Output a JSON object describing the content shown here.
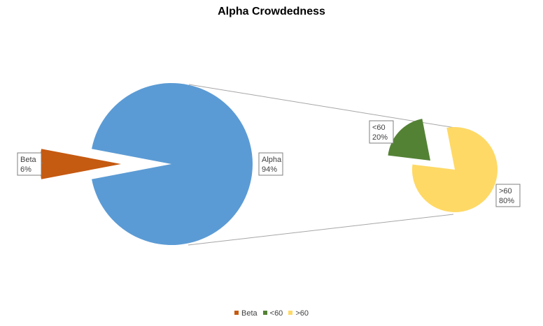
{
  "chart_data": {
    "type": "pie",
    "title": "Alpha Crowdedness",
    "main_pie": [
      {
        "label": "Beta",
        "percent_label": "6%",
        "value": 6,
        "color": "#c55a11"
      },
      {
        "label": "Alpha",
        "percent_label": "94%",
        "value": 94,
        "color": "#5b9bd5"
      }
    ],
    "secondary_pie": {
      "breaks_out": "Alpha",
      "slices": [
        {
          "label": "<60",
          "percent_label": "20%",
          "value": 20,
          "color": "#548235"
        },
        {
          "label": ">60",
          "percent_label": "80%",
          "value": 80,
          "color": "#ffd966"
        }
      ]
    },
    "legend": [
      {
        "label": "Beta",
        "color": "#c55a11"
      },
      {
        "label": "<60",
        "color": "#548235"
      },
      {
        "label": ">60",
        "color": "#ffd966"
      }
    ],
    "legend_position": "bottom"
  }
}
